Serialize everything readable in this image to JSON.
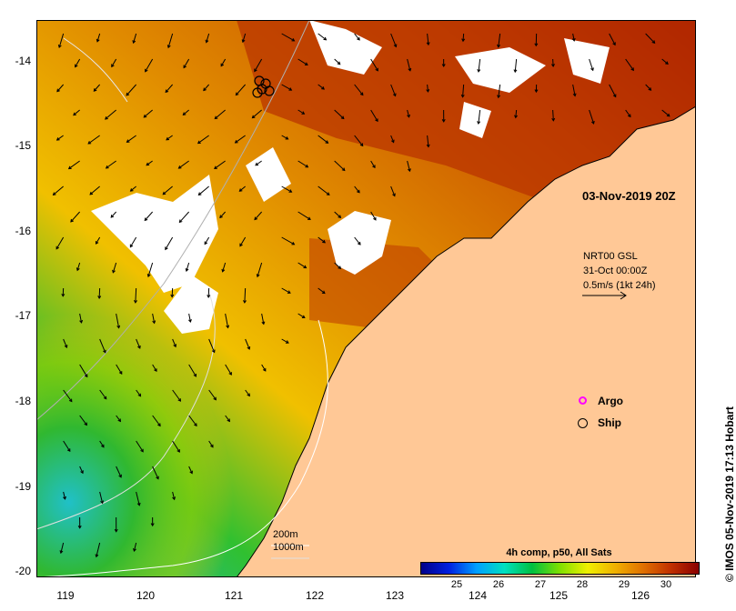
{
  "axes": {
    "y_ticks": [
      "-14",
      "-15",
      "-16",
      "-17",
      "-18",
      "-19",
      "-20"
    ],
    "x_ticks": [
      "119",
      "120",
      "121",
      "122",
      "123",
      "124",
      "125",
      "126"
    ]
  },
  "date_stamp": "03-Nov-2019 20Z",
  "current_note": {
    "line1": "NRT00 GSL",
    "line2": "31-Oct 00:00Z",
    "line3": "0.5m/s (1kt 24h)"
  },
  "legend": {
    "argo_label": "Argo",
    "ship_label": "Ship",
    "argo_color": "#ff00ff",
    "ship_color": "#000000"
  },
  "depth_labels": {
    "contour1": "200m",
    "contour2": "1000m"
  },
  "colorbar": {
    "title": "4h comp, p50, All Sats",
    "ticks": [
      "25",
      "26",
      "27",
      "28",
      "29",
      "30"
    ]
  },
  "credit": "© IMOS 05-Nov-2019 17:13 Hobart",
  "colors": {
    "land": "#ffc896",
    "warm": "#d25a00",
    "hot": "#a01400",
    "mid": "#f0a000",
    "cool": "#40c000",
    "cold": "#20c0d0"
  }
}
